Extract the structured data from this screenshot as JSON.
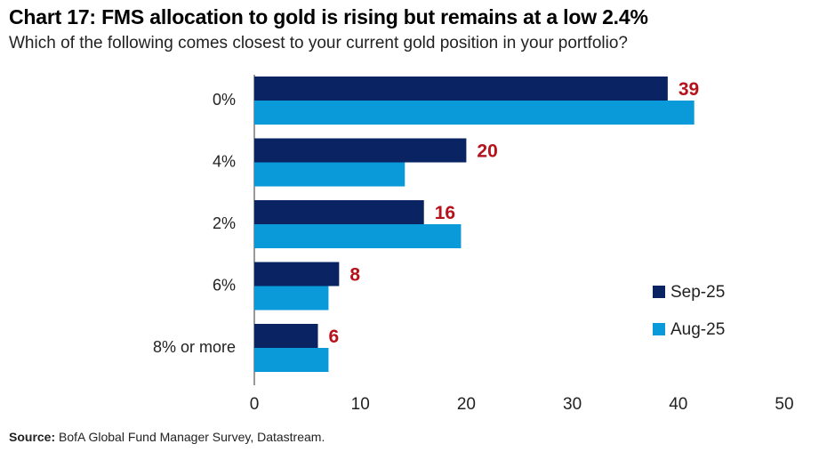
{
  "title": "Chart 17: FMS allocation to gold is rising but remains at a low 2.4%",
  "subtitle": "Which of the following comes closest to your current gold position in your portfolio?",
  "source_label": "Source:",
  "source_text": " BofA Global Fund Manager Survey, Datastream.",
  "chart_data": {
    "type": "bar",
    "orientation": "horizontal",
    "categories": [
      "0%",
      "4%",
      "2%",
      "6%",
      "8% or more"
    ],
    "series": [
      {
        "name": "Sep-25",
        "values": [
          39,
          20,
          16,
          8,
          6
        ],
        "color": "#0a2463",
        "labels": [
          "39",
          "20",
          "16",
          "8",
          "6"
        ]
      },
      {
        "name": "Aug-25",
        "values": [
          41.5,
          14.2,
          19.5,
          7,
          7
        ],
        "color": "#0a9ad9"
      }
    ],
    "data_label_color": "#b5121b",
    "xlim": [
      0,
      50
    ],
    "xticks": [
      0,
      10,
      20,
      30,
      40,
      50
    ],
    "grid": false,
    "legend_position": "right"
  }
}
